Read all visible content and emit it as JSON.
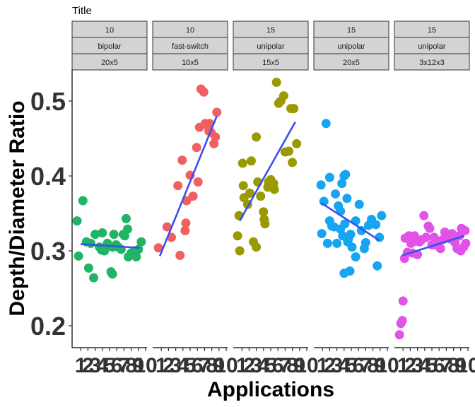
{
  "chart_data": {
    "type": "scatter",
    "title": "Title",
    "xlabel": "Applications",
    "ylabel": "Depth/Diameter Ratio",
    "ylim": [
      0.18,
      0.55
    ],
    "yticks": [
      0.2,
      0.3,
      0.4,
      0.5
    ],
    "ytick_labels": [
      "0.2",
      "0.3",
      "0.4",
      "0.5"
    ],
    "xlim": [
      0,
      10
    ],
    "xtick_labels": [
      "1",
      "2",
      "3",
      "4",
      "5",
      "6",
      "7",
      "8",
      "9",
      "10"
    ],
    "legend": "none",
    "grid": false,
    "trend_color": "#3a4ff0",
    "panels": [
      {
        "strips": [
          "10",
          "bipolar",
          "20x5"
        ],
        "color": "#1fb466",
        "points": [
          {
            "x": 0.5,
            "y": 0.34
          },
          {
            "x": 0.7,
            "y": 0.293
          },
          {
            "x": 1.3,
            "y": 0.367
          },
          {
            "x": 1.8,
            "y": 0.312
          },
          {
            "x": 2.1,
            "y": 0.277
          },
          {
            "x": 2.4,
            "y": 0.31
          },
          {
            "x": 2.8,
            "y": 0.264
          },
          {
            "x": 3.0,
            "y": 0.322
          },
          {
            "x": 3.6,
            "y": 0.305
          },
          {
            "x": 4.0,
            "y": 0.324
          },
          {
            "x": 4.3,
            "y": 0.3
          },
          {
            "x": 4.7,
            "y": 0.31
          },
          {
            "x": 5.2,
            "y": 0.272
          },
          {
            "x": 5.4,
            "y": 0.305
          },
          {
            "x": 5.6,
            "y": 0.322
          },
          {
            "x": 5.9,
            "y": 0.308
          },
          {
            "x": 6.2,
            "y": 0.305
          },
          {
            "x": 6.6,
            "y": 0.302
          },
          {
            "x": 6.9,
            "y": 0.322
          },
          {
            "x": 7.1,
            "y": 0.32
          },
          {
            "x": 7.5,
            "y": 0.329
          },
          {
            "x": 7.3,
            "y": 0.343
          },
          {
            "x": 7.6,
            "y": 0.292
          },
          {
            "x": 8.0,
            "y": 0.297
          },
          {
            "x": 8.4,
            "y": 0.3
          },
          {
            "x": 8.7,
            "y": 0.292
          },
          {
            "x": 9.0,
            "y": 0.302
          },
          {
            "x": 9.4,
            "y": 0.312
          },
          {
            "x": 5.4,
            "y": 0.269
          },
          {
            "x": 3.9,
            "y": 0.301
          }
        ],
        "trend": {
          "x": [
            1.0,
            9.2
          ],
          "y": [
            0.309,
            0.304
          ]
        }
      },
      {
        "strips": [
          "10",
          "fast-switch",
          "10x5"
        ],
        "color": "#f06060",
        "points": [
          {
            "x": 0.6,
            "y": 0.304
          },
          {
            "x": 1.8,
            "y": 0.332
          },
          {
            "x": 2.4,
            "y": 0.318
          },
          {
            "x": 3.3,
            "y": 0.387
          },
          {
            "x": 3.6,
            "y": 0.294
          },
          {
            "x": 3.9,
            "y": 0.421
          },
          {
            "x": 4.3,
            "y": 0.327
          },
          {
            "x": 4.4,
            "y": 0.337
          },
          {
            "x": 4.5,
            "y": 0.367
          },
          {
            "x": 5.0,
            "y": 0.401
          },
          {
            "x": 5.4,
            "y": 0.373
          },
          {
            "x": 5.9,
            "y": 0.438
          },
          {
            "x": 6.1,
            "y": 0.392
          },
          {
            "x": 6.3,
            "y": 0.465
          },
          {
            "x": 6.5,
            "y": 0.516
          },
          {
            "x": 6.9,
            "y": 0.512
          },
          {
            "x": 7.1,
            "y": 0.47
          },
          {
            "x": 7.4,
            "y": 0.468
          },
          {
            "x": 7.7,
            "y": 0.47
          },
          {
            "x": 8.3,
            "y": 0.443
          },
          {
            "x": 8.5,
            "y": 0.452
          },
          {
            "x": 8.7,
            "y": 0.485
          },
          {
            "x": 7.9,
            "y": 0.458
          },
          {
            "x": 7.6,
            "y": 0.46
          }
        ],
        "trend": {
          "x": [
            0.8,
            8.7
          ],
          "y": [
            0.293,
            0.48
          ]
        }
      },
      {
        "strips": [
          "15",
          "unipolar",
          "15x5"
        ],
        "color": "#9a9a00",
        "points": [
          {
            "x": 0.4,
            "y": 0.32
          },
          {
            "x": 0.6,
            "y": 0.347
          },
          {
            "x": 0.7,
            "y": 0.3
          },
          {
            "x": 1.1,
            "y": 0.417
          },
          {
            "x": 1.2,
            "y": 0.387
          },
          {
            "x": 1.3,
            "y": 0.371
          },
          {
            "x": 1.8,
            "y": 0.362
          },
          {
            "x": 2.1,
            "y": 0.377
          },
          {
            "x": 2.3,
            "y": 0.42
          },
          {
            "x": 2.6,
            "y": 0.312
          },
          {
            "x": 3.0,
            "y": 0.305
          },
          {
            "x": 3.0,
            "y": 0.452
          },
          {
            "x": 3.2,
            "y": 0.392
          },
          {
            "x": 3.6,
            "y": 0.373
          },
          {
            "x": 4.1,
            "y": 0.342
          },
          {
            "x": 4.2,
            "y": 0.336
          },
          {
            "x": 4.0,
            "y": 0.352
          },
          {
            "x": 4.6,
            "y": 0.385
          },
          {
            "x": 5.0,
            "y": 0.395
          },
          {
            "x": 5.4,
            "y": 0.39
          },
          {
            "x": 5.8,
            "y": 0.525
          },
          {
            "x": 6.1,
            "y": 0.497
          },
          {
            "x": 6.4,
            "y": 0.5
          },
          {
            "x": 6.8,
            "y": 0.507
          },
          {
            "x": 7.0,
            "y": 0.432
          },
          {
            "x": 7.5,
            "y": 0.433
          },
          {
            "x": 7.8,
            "y": 0.49
          },
          {
            "x": 8.2,
            "y": 0.49
          },
          {
            "x": 8.0,
            "y": 0.418
          },
          {
            "x": 8.6,
            "y": 0.443
          },
          {
            "x": 5.5,
            "y": 0.382
          },
          {
            "x": 4.7,
            "y": 0.392
          }
        ],
        "trend": {
          "x": [
            0.7,
            8.4
          ],
          "y": [
            0.34,
            0.472
          ]
        }
      },
      {
        "strips": [
          "15",
          "unipolar",
          "20x5"
        ],
        "color": "#16a5f0",
        "points": [
          {
            "x": 0.8,
            "y": 0.388
          },
          {
            "x": 0.9,
            "y": 0.323
          },
          {
            "x": 1.2,
            "y": 0.366
          },
          {
            "x": 1.5,
            "y": 0.47
          },
          {
            "x": 1.7,
            "y": 0.31
          },
          {
            "x": 2.0,
            "y": 0.398
          },
          {
            "x": 2.3,
            "y": 0.333
          },
          {
            "x": 2.6,
            "y": 0.332
          },
          {
            "x": 2.8,
            "y": 0.376
          },
          {
            "x": 3.0,
            "y": 0.31
          },
          {
            "x": 3.2,
            "y": 0.36
          },
          {
            "x": 3.5,
            "y": 0.353
          },
          {
            "x": 3.7,
            "y": 0.39
          },
          {
            "x": 3.8,
            "y": 0.32
          },
          {
            "x": 4.0,
            "y": 0.4
          },
          {
            "x": 4.2,
            "y": 0.402
          },
          {
            "x": 4.4,
            "y": 0.37
          },
          {
            "x": 4.6,
            "y": 0.316
          },
          {
            "x": 4.9,
            "y": 0.322
          },
          {
            "x": 5.1,
            "y": 0.305
          },
          {
            "x": 3.5,
            "y": 0.329
          },
          {
            "x": 4.1,
            "y": 0.336
          },
          {
            "x": 4.5,
            "y": 0.312
          },
          {
            "x": 4.0,
            "y": 0.27
          },
          {
            "x": 4.8,
            "y": 0.273
          },
          {
            "x": 5.6,
            "y": 0.292
          },
          {
            "x": 6.1,
            "y": 0.362
          },
          {
            "x": 6.4,
            "y": 0.327
          },
          {
            "x": 6.8,
            "y": 0.303
          },
          {
            "x": 7.0,
            "y": 0.311
          },
          {
            "x": 7.4,
            "y": 0.334
          },
          {
            "x": 7.8,
            "y": 0.342
          },
          {
            "x": 8.4,
            "y": 0.335
          },
          {
            "x": 8.6,
            "y": 0.28
          },
          {
            "x": 8.9,
            "y": 0.318
          },
          {
            "x": 9.2,
            "y": 0.347
          },
          {
            "x": 2.0,
            "y": 0.34
          },
          {
            "x": 5.6,
            "y": 0.34
          }
        ],
        "trend": {
          "x": [
            0.8,
            8.9
          ],
          "y": [
            0.364,
            0.314
          ]
        }
      },
      {
        "strips": [
          "15",
          "unipolar",
          "3x12x3"
        ],
        "color": "#e052e8",
        "points": [
          {
            "x": 0.5,
            "y": 0.188
          },
          {
            "x": 0.7,
            "y": 0.203
          },
          {
            "x": 0.9,
            "y": 0.207
          },
          {
            "x": 1.0,
            "y": 0.233
          },
          {
            "x": 1.2,
            "y": 0.29
          },
          {
            "x": 1.3,
            "y": 0.317
          },
          {
            "x": 1.6,
            "y": 0.298
          },
          {
            "x": 1.8,
            "y": 0.32
          },
          {
            "x": 2.1,
            "y": 0.31
          },
          {
            "x": 2.3,
            "y": 0.297
          },
          {
            "x": 2.6,
            "y": 0.32
          },
          {
            "x": 2.8,
            "y": 0.313
          },
          {
            "x": 3.0,
            "y": 0.295
          },
          {
            "x": 3.3,
            "y": 0.312
          },
          {
            "x": 3.6,
            "y": 0.315
          },
          {
            "x": 3.9,
            "y": 0.347
          },
          {
            "x": 4.2,
            "y": 0.318
          },
          {
            "x": 4.5,
            "y": 0.333
          },
          {
            "x": 4.7,
            "y": 0.33
          },
          {
            "x": 5.0,
            "y": 0.308
          },
          {
            "x": 5.3,
            "y": 0.318
          },
          {
            "x": 5.6,
            "y": 0.313
          },
          {
            "x": 5.9,
            "y": 0.313
          },
          {
            "x": 6.2,
            "y": 0.303
          },
          {
            "x": 6.5,
            "y": 0.315
          },
          {
            "x": 6.8,
            "y": 0.325
          },
          {
            "x": 7.2,
            "y": 0.32
          },
          {
            "x": 7.5,
            "y": 0.316
          },
          {
            "x": 7.8,
            "y": 0.323
          },
          {
            "x": 8.2,
            "y": 0.311
          },
          {
            "x": 8.5,
            "y": 0.303
          },
          {
            "x": 8.8,
            "y": 0.32
          },
          {
            "x": 9.1,
            "y": 0.33
          },
          {
            "x": 9.4,
            "y": 0.305
          },
          {
            "x": 9.6,
            "y": 0.327
          },
          {
            "x": 9.7,
            "y": 0.31
          },
          {
            "x": 9.0,
            "y": 0.3
          },
          {
            "x": 5.5,
            "y": 0.308
          }
        ],
        "trend": {
          "x": [
            0.9,
            9.5
          ],
          "y": [
            0.294,
            0.32
          ]
        }
      }
    ]
  }
}
